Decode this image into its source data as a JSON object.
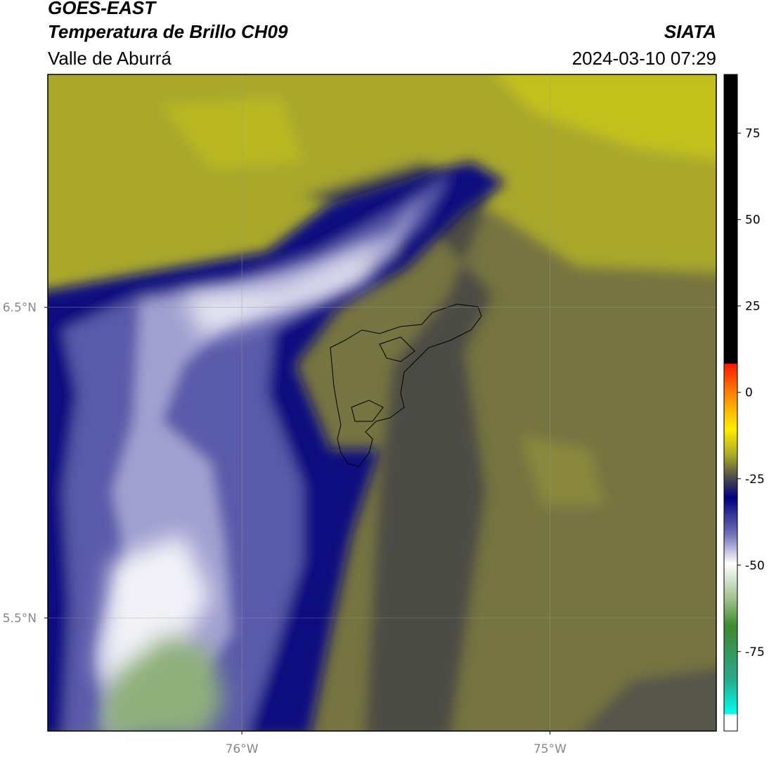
{
  "header": {
    "title": "GOES-EAST",
    "subtitle": "Temperatura de Brillo CH09",
    "region": "Valle de Aburrá",
    "source": "SIATA",
    "datetime": "2024-03-10 07:29"
  },
  "map": {
    "xlim": [
      -76.63,
      -74.46
    ],
    "ylim": [
      5.136,
      7.25
    ],
    "xticks": [
      {
        "value": -76,
        "label": "76°W"
      },
      {
        "value": -75,
        "label": "75°W"
      }
    ],
    "yticks": [
      {
        "value": 6.5,
        "label": "6.5°N"
      },
      {
        "value": 5.5,
        "label": "5.5°N"
      }
    ],
    "grid": true
  },
  "colorbar": {
    "clim": [
      -98,
      92
    ],
    "ticks": [
      75,
      50,
      25,
      0,
      -25,
      -50,
      -75
    ]
  }
}
